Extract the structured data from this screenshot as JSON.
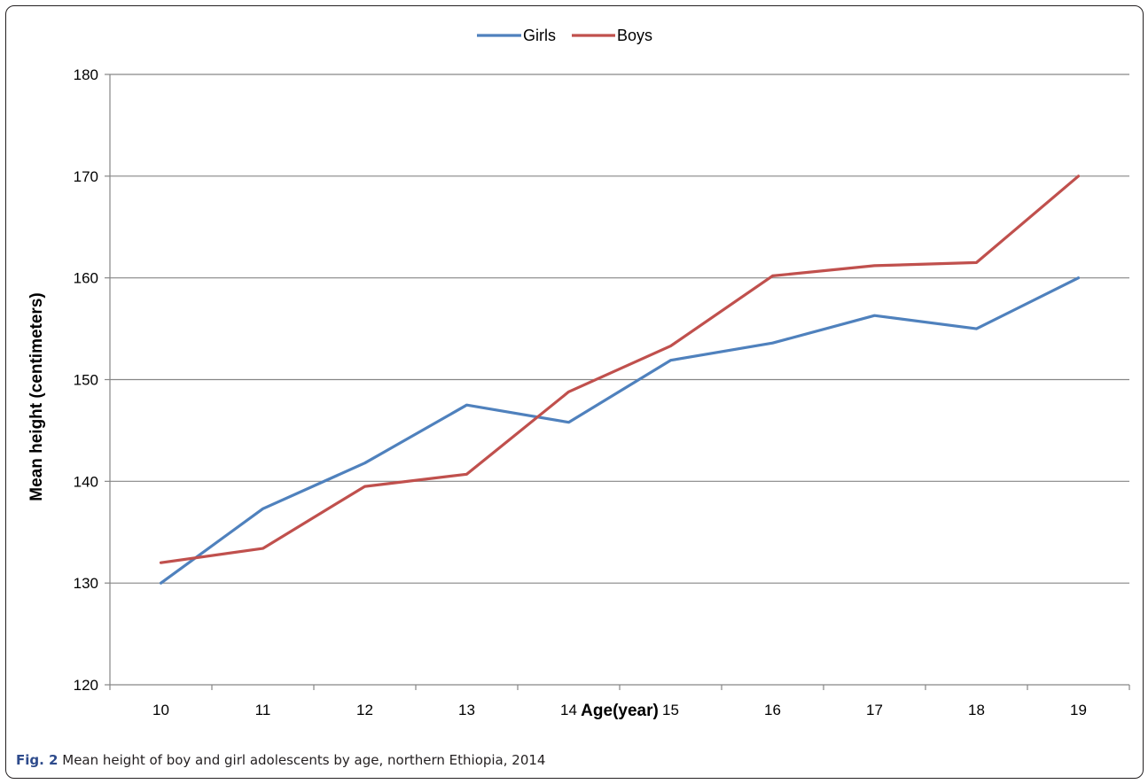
{
  "chart_data": {
    "type": "line",
    "title": "",
    "xlabel": "Age(year)",
    "ylabel": "Mean height (centimeters)",
    "categories": [
      "10",
      "11",
      "12",
      "13",
      "14",
      "15",
      "16",
      "17",
      "18",
      "19"
    ],
    "ylim": [
      120,
      180
    ],
    "yticks": [
      120,
      130,
      140,
      150,
      160,
      170,
      180
    ],
    "grid": true,
    "legend_position": "top-center",
    "series": [
      {
        "name": "Girls",
        "color": "#4f81bd",
        "values": [
          130.0,
          137.3,
          141.8,
          147.5,
          145.8,
          151.9,
          153.6,
          156.3,
          155.0,
          160.0
        ]
      },
      {
        "name": "Boys",
        "color": "#c0504d",
        "values": [
          132.0,
          133.4,
          139.5,
          140.7,
          148.8,
          153.3,
          160.2,
          161.2,
          161.5,
          170.0
        ]
      }
    ]
  },
  "caption": {
    "label": "Fig. 2",
    "text": " Mean height of boy and girl adolescents by age, northern Ethiopia, 2014"
  }
}
